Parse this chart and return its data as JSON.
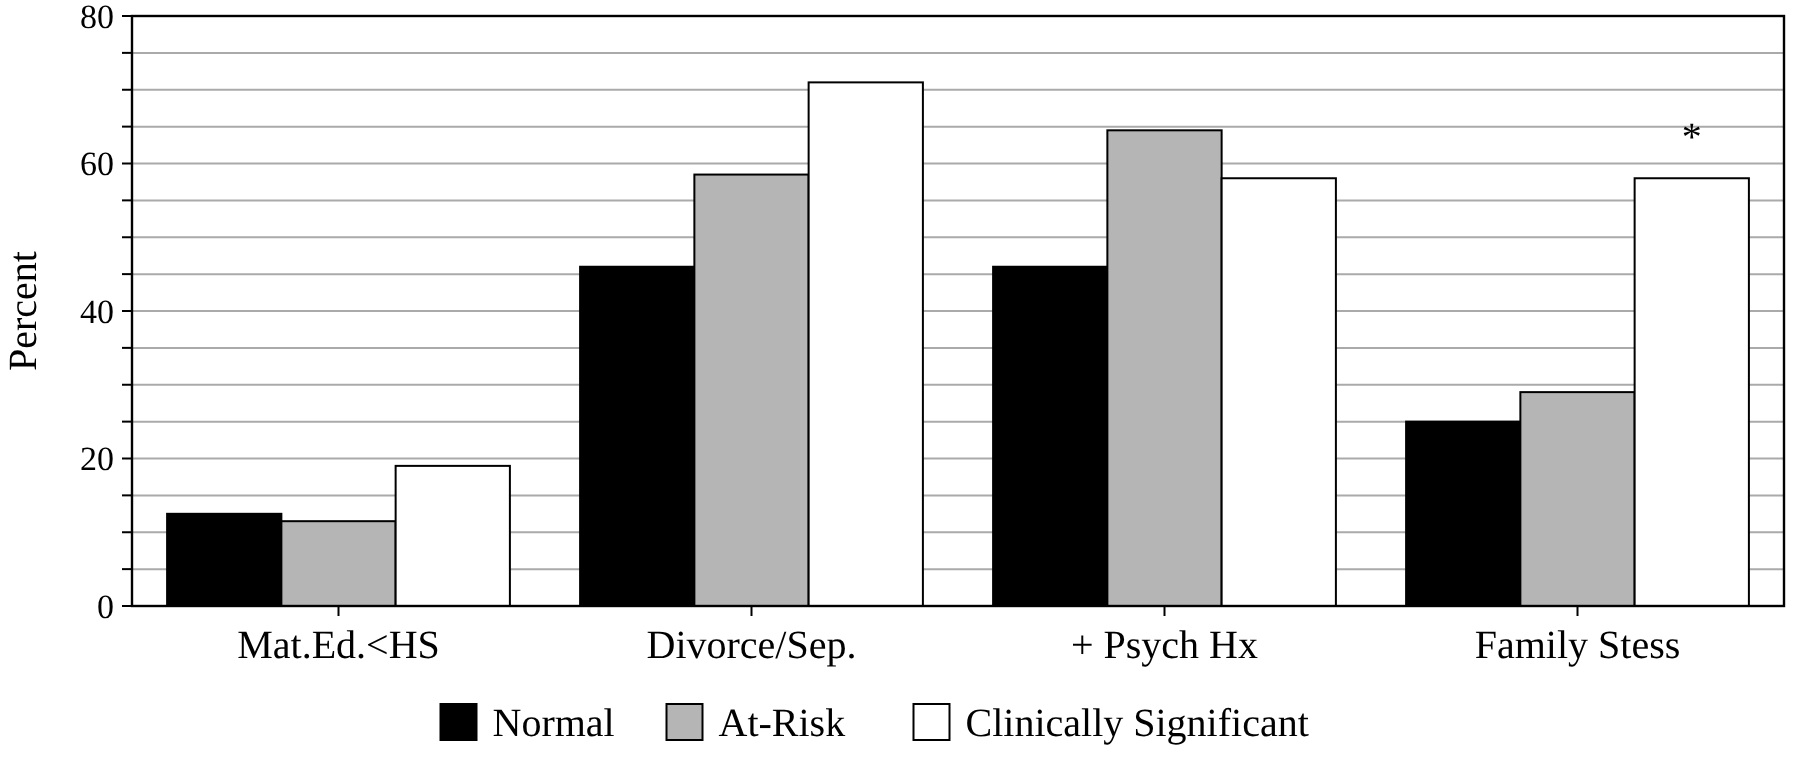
{
  "chart_data": {
    "type": "bar",
    "ylabel": "Percent",
    "categories": [
      "Mat.Ed.<HS",
      "Divorce/Sep.",
      "+ Psych Hx",
      "Family Stess"
    ],
    "series": [
      {
        "name": "Normal",
        "color": "#000000",
        "values": [
          12.5,
          46,
          46,
          25
        ]
      },
      {
        "name": "At-Risk",
        "color": "#b5b5b5",
        "values": [
          11.5,
          58.5,
          64.5,
          29
        ]
      },
      {
        "name": "Clinically Significant",
        "color": "#ffffff",
        "values": [
          19,
          71,
          58,
          58
        ]
      }
    ],
    "ylim": [
      0,
      80
    ],
    "yticks": [
      0,
      {
        "value": 5,
        "label": null
      },
      {
        "value": 10,
        "label": null
      },
      {
        "value": 15,
        "label": null
      },
      20,
      {
        "value": 25,
        "label": null
      },
      {
        "value": 30,
        "label": null
      },
      {
        "value": 35,
        "label": null
      },
      40,
      {
        "value": 45,
        "label": null
      },
      {
        "value": 50,
        "label": null
      },
      {
        "value": 55,
        "label": null
      },
      60,
      {
        "value": 65,
        "label": null
      },
      {
        "value": 70,
        "label": null
      },
      {
        "value": 75,
        "label": null
      },
      80
    ],
    "grid": "y",
    "legend": "bottom",
    "annotations": [
      "*"
    ]
  }
}
